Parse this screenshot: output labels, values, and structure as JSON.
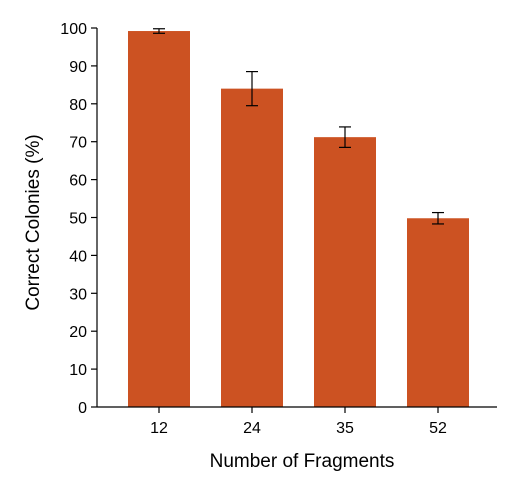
{
  "chart_data": {
    "type": "bar",
    "title": "",
    "xlabel": "Number of Fragments",
    "ylabel": "Correct Colonies (%)",
    "categories": [
      "12",
      "24",
      "35",
      "52"
    ],
    "values": [
      99.2,
      84.0,
      71.2,
      49.8
    ],
    "error": [
      0.6,
      4.5,
      2.7,
      1.5
    ],
    "ylim": [
      0,
      100
    ],
    "yticks": [
      0,
      10,
      20,
      30,
      40,
      50,
      60,
      70,
      80,
      90,
      100
    ],
    "grid": false,
    "legend": "none",
    "bar_color": "#cc5222",
    "errorbar_color": "#000000"
  }
}
